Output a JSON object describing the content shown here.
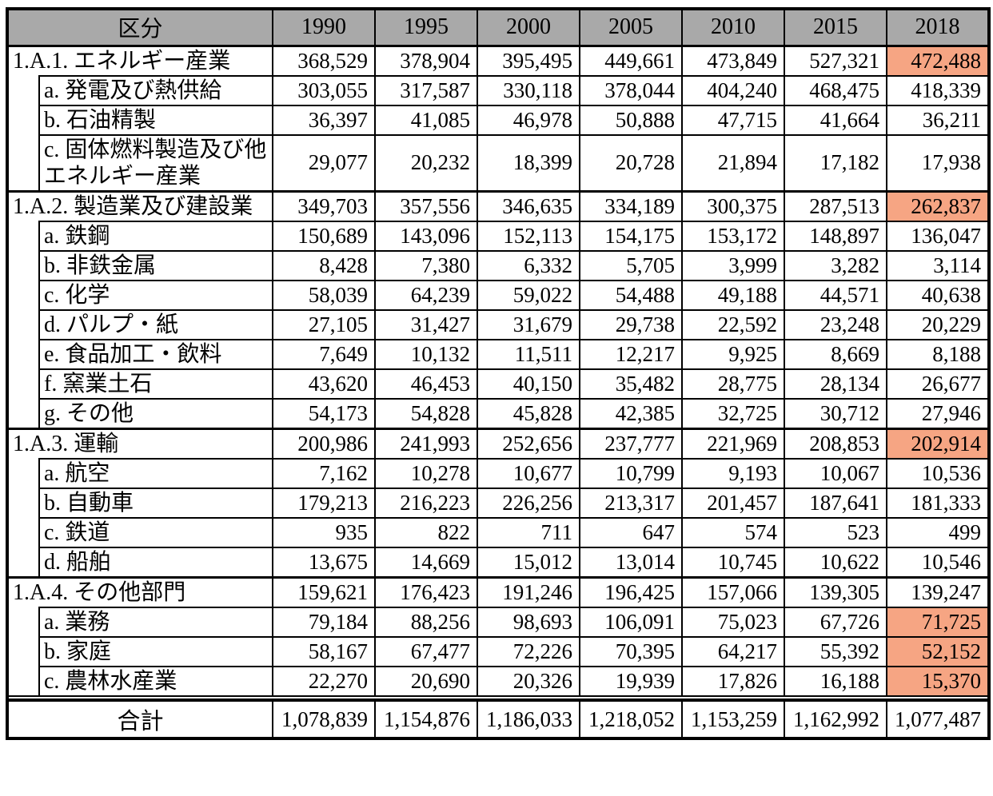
{
  "colors": {
    "header_bg": "#a9a9a9",
    "highlight": "#f6a583",
    "border": "#000000",
    "background": "#ffffff"
  },
  "chart_data": {
    "type": "table",
    "title": "",
    "unit_note": "",
    "columns": [
      "区分",
      "1990",
      "1995",
      "2000",
      "2005",
      "2010",
      "2015",
      "2018"
    ],
    "sections": [
      {
        "label": "1.A.1. エネルギー産業",
        "values": [
          "368,529",
          "378,904",
          "395,495",
          "449,661",
          "473,849",
          "527,321",
          "472,488"
        ],
        "highlight_2018": true,
        "children": [
          {
            "label": "a. 発電及び熱供給",
            "values": [
              "303,055",
              "317,587",
              "330,118",
              "378,044",
              "404,240",
              "468,475",
              "418,339"
            ],
            "highlight_2018": false
          },
          {
            "label": "b. 石油精製",
            "values": [
              "36,397",
              "41,085",
              "46,978",
              "50,888",
              "47,715",
              "41,664",
              "36,211"
            ],
            "highlight_2018": false
          },
          {
            "label": "c. 固体燃料製造及び他エネルギー産業",
            "values": [
              "29,077",
              "20,232",
              "18,399",
              "20,728",
              "21,894",
              "17,182",
              "17,938"
            ],
            "highlight_2018": false
          }
        ]
      },
      {
        "label": "1.A.2. 製造業及び建設業",
        "values": [
          "349,703",
          "357,556",
          "346,635",
          "334,189",
          "300,375",
          "287,513",
          "262,837"
        ],
        "highlight_2018": true,
        "children": [
          {
            "label": "a. 鉄鋼",
            "values": [
              "150,689",
              "143,096",
              "152,113",
              "154,175",
              "153,172",
              "148,897",
              "136,047"
            ],
            "highlight_2018": false
          },
          {
            "label": "b. 非鉄金属",
            "values": [
              "8,428",
              "7,380",
              "6,332",
              "5,705",
              "3,999",
              "3,282",
              "3,114"
            ],
            "highlight_2018": false
          },
          {
            "label": "c. 化学",
            "values": [
              "58,039",
              "64,239",
              "59,022",
              "54,488",
              "49,188",
              "44,571",
              "40,638"
            ],
            "highlight_2018": false
          },
          {
            "label": "d. パルプ・紙",
            "values": [
              "27,105",
              "31,427",
              "31,679",
              "29,738",
              "22,592",
              "23,248",
              "20,229"
            ],
            "highlight_2018": false
          },
          {
            "label": "e. 食品加工・飲料",
            "values": [
              "7,649",
              "10,132",
              "11,511",
              "12,217",
              "9,925",
              "8,669",
              "8,188"
            ],
            "highlight_2018": false
          },
          {
            "label": "f. 窯業土石",
            "values": [
              "43,620",
              "46,453",
              "40,150",
              "35,482",
              "28,775",
              "28,134",
              "26,677"
            ],
            "highlight_2018": false
          },
          {
            "label": "g. その他",
            "values": [
              "54,173",
              "54,828",
              "45,828",
              "42,385",
              "32,725",
              "30,712",
              "27,946"
            ],
            "highlight_2018": false
          }
        ]
      },
      {
        "label": "1.A.3. 運輸",
        "values": [
          "200,986",
          "241,993",
          "252,656",
          "237,777",
          "221,969",
          "208,853",
          "202,914"
        ],
        "highlight_2018": true,
        "children": [
          {
            "label": "a. 航空",
            "values": [
              "7,162",
              "10,278",
              "10,677",
              "10,799",
              "9,193",
              "10,067",
              "10,536"
            ],
            "highlight_2018": false
          },
          {
            "label": "b. 自動車",
            "values": [
              "179,213",
              "216,223",
              "226,256",
              "213,317",
              "201,457",
              "187,641",
              "181,333"
            ],
            "highlight_2018": false
          },
          {
            "label": "c. 鉄道",
            "values": [
              "935",
              "822",
              "711",
              "647",
              "574",
              "523",
              "499"
            ],
            "highlight_2018": false
          },
          {
            "label": "d. 船舶",
            "values": [
              "13,675",
              "14,669",
              "15,012",
              "13,014",
              "10,745",
              "10,622",
              "10,546"
            ],
            "highlight_2018": false
          }
        ]
      },
      {
        "label": "1.A.4. その他部門",
        "values": [
          "159,621",
          "176,423",
          "191,246",
          "196,425",
          "157,066",
          "139,305",
          "139,247"
        ],
        "highlight_2018": false,
        "children": [
          {
            "label": "a. 業務",
            "values": [
              "79,184",
              "88,256",
              "98,693",
              "106,091",
              "75,023",
              "67,726",
              "71,725"
            ],
            "highlight_2018": true
          },
          {
            "label": "b. 家庭",
            "values": [
              "58,167",
              "67,477",
              "72,226",
              "70,395",
              "64,217",
              "55,392",
              "52,152"
            ],
            "highlight_2018": true
          },
          {
            "label": "c. 農林水産業",
            "values": [
              "22,270",
              "20,690",
              "20,326",
              "19,939",
              "17,826",
              "16,188",
              "15,370"
            ],
            "highlight_2018": true
          }
        ]
      }
    ],
    "total": {
      "label": "合計",
      "values": [
        "1,078,839",
        "1,154,876",
        "1,186,033",
        "1,218,052",
        "1,153,259",
        "1,162,992",
        "1,077,487"
      ],
      "highlight_2018": false
    }
  }
}
